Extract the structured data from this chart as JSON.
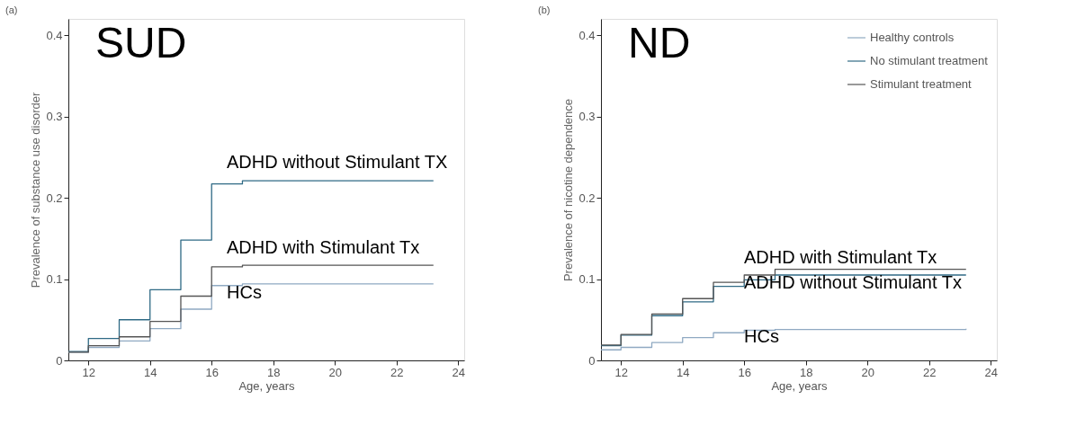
{
  "chart_data": [
    {
      "type": "step",
      "title": "(a)",
      "ylabel": "Prevalence of substance use disorder",
      "xlabel": "Age, years",
      "x": [
        11.35,
        12,
        13,
        14,
        15,
        16,
        17,
        23.2
      ],
      "series": [
        {
          "color": "#8fa9c2",
          "values": [
            0.01,
            0.016,
            0.024,
            0.039,
            0.063,
            0.092,
            0.094,
            0.094
          ]
        },
        {
          "color": "#2f6a85",
          "values": [
            0.011,
            0.027,
            0.05,
            0.087,
            0.148,
            0.217,
            0.221,
            0.221
          ]
        },
        {
          "color": "#555555",
          "values": [
            0.01,
            0.018,
            0.029,
            0.048,
            0.079,
            0.115,
            0.117,
            0.117
          ]
        }
      ],
      "xlim": [
        11.35,
        24.2
      ],
      "ylim": [
        0,
        0.42
      ],
      "xticks": [
        12,
        14,
        16,
        18,
        20,
        22,
        24
      ],
      "yticks": [
        0,
        0.1,
        0.2,
        0.3,
        0.4
      ],
      "grid": false,
      "legend": false,
      "line_style": "solid",
      "marker": "none",
      "annotations": [
        "SUD",
        "ADHD without Stimulant TX",
        "ADHD with Stimulant Tx",
        "HCs"
      ]
    },
    {
      "type": "step",
      "title": "(b)",
      "ylabel": "Prevalence of nicotine dependence",
      "xlabel": "Age, years",
      "x": [
        11.35,
        12,
        13,
        14,
        15,
        16,
        17,
        23.2
      ],
      "series": [
        {
          "name": "Healthy controls",
          "color": "#8fa9c2",
          "values": [
            0.013,
            0.016,
            0.022,
            0.028,
            0.034,
            0.037,
            0.038,
            0.039
          ]
        },
        {
          "name": "No stimulant treatment",
          "color": "#2f6a85",
          "values": [
            0.018,
            0.031,
            0.055,
            0.072,
            0.091,
            0.099,
            0.105,
            0.105
          ]
        },
        {
          "name": "Stimulant treatment",
          "color": "#555555",
          "values": [
            0.019,
            0.032,
            0.057,
            0.076,
            0.096,
            0.105,
            0.112,
            0.112
          ]
        }
      ],
      "xlim": [
        11.35,
        24.2
      ],
      "ylim": [
        0,
        0.42
      ],
      "xticks": [
        12,
        14,
        16,
        18,
        20,
        22,
        24
      ],
      "yticks": [
        0,
        0.1,
        0.2,
        0.3,
        0.4
      ],
      "grid": false,
      "legend": "top right",
      "line_style": "solid",
      "marker": "none",
      "annotations": [
        "ND",
        "ADHD with Stimulant Tx",
        "ADHD without Stimulant Tx",
        "HCs"
      ]
    }
  ]
}
